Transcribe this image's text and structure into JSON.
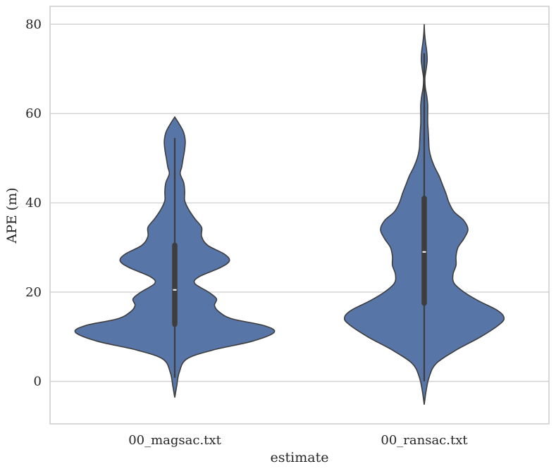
{
  "chart_data": {
    "type": "violin",
    "title": "",
    "xlabel": "estimate",
    "ylabel": "APE (m)",
    "categories": [
      "00_magsac.txt",
      "00_ransac.txt"
    ],
    "ylim": [
      -9.5,
      84
    ],
    "yticks": [
      0,
      20,
      40,
      60,
      80
    ],
    "grid": true,
    "colors": {
      "fill": "#5875a8",
      "edge": "#3d3d3d",
      "box": "#3d3d3d",
      "median": "#ffffff",
      "grid": "#cccccc"
    },
    "violins": [
      {
        "category": "00_magsac.txt",
        "median": 20.5,
        "q1": 12.8,
        "q3": 30.5,
        "whisker_low": 0.8,
        "whisker_high": 54.5,
        "density": [
          [
            -3.6,
            0.0
          ],
          [
            -1,
            0.02
          ],
          [
            2,
            0.045
          ],
          [
            5,
            0.12
          ],
          [
            7,
            0.38
          ],
          [
            9,
            0.78
          ],
          [
            11,
            1.0
          ],
          [
            12.5,
            0.9
          ],
          [
            14,
            0.58
          ],
          [
            15.5,
            0.45
          ],
          [
            17,
            0.4
          ],
          [
            18.5,
            0.42
          ],
          [
            20,
            0.34
          ],
          [
            22,
            0.2
          ],
          [
            23.5,
            0.25
          ],
          [
            25.5,
            0.46
          ],
          [
            27,
            0.55
          ],
          [
            28.5,
            0.5
          ],
          [
            30.5,
            0.33
          ],
          [
            32.5,
            0.27
          ],
          [
            34.5,
            0.27
          ],
          [
            36.5,
            0.2
          ],
          [
            38.5,
            0.14
          ],
          [
            40.5,
            0.1
          ],
          [
            42.5,
            0.1
          ],
          [
            44.5,
            0.09
          ],
          [
            46.5,
            0.055
          ],
          [
            48,
            0.07
          ],
          [
            50,
            0.085
          ],
          [
            52,
            0.1
          ],
          [
            54,
            0.105
          ],
          [
            56,
            0.085
          ],
          [
            58,
            0.035
          ],
          [
            59.2,
            0.0
          ]
        ]
      },
      {
        "category": "00_ransac.txt",
        "median": 29.0,
        "q1": 17.5,
        "q3": 41.0,
        "whisker_low": 0.0,
        "whisker_high": 73.5,
        "density": [
          [
            -5.2,
            0.0
          ],
          [
            -2,
            0.02
          ],
          [
            1,
            0.05
          ],
          [
            4,
            0.12
          ],
          [
            7,
            0.32
          ],
          [
            10,
            0.57
          ],
          [
            13,
            0.77
          ],
          [
            14.5,
            0.8
          ],
          [
            16,
            0.73
          ],
          [
            18,
            0.55
          ],
          [
            20,
            0.4
          ],
          [
            22,
            0.3
          ],
          [
            24,
            0.29
          ],
          [
            26,
            0.32
          ],
          [
            28,
            0.32
          ],
          [
            30,
            0.34
          ],
          [
            32,
            0.4
          ],
          [
            34,
            0.44
          ],
          [
            36,
            0.4
          ],
          [
            38,
            0.3
          ],
          [
            40,
            0.25
          ],
          [
            42,
            0.22
          ],
          [
            44,
            0.185
          ],
          [
            46,
            0.15
          ],
          [
            48,
            0.105
          ],
          [
            50,
            0.07
          ],
          [
            52,
            0.05
          ],
          [
            54,
            0.045
          ],
          [
            56,
            0.04
          ],
          [
            58,
            0.035
          ],
          [
            60,
            0.035
          ],
          [
            62,
            0.035
          ],
          [
            64,
            0.025
          ],
          [
            66,
            0.01
          ],
          [
            68,
            0.007
          ],
          [
            70,
            0.02
          ],
          [
            72,
            0.03
          ],
          [
            74,
            0.025
          ],
          [
            76,
            0.013
          ],
          [
            78,
            0.004
          ],
          [
            80,
            0.0
          ]
        ]
      }
    ]
  }
}
